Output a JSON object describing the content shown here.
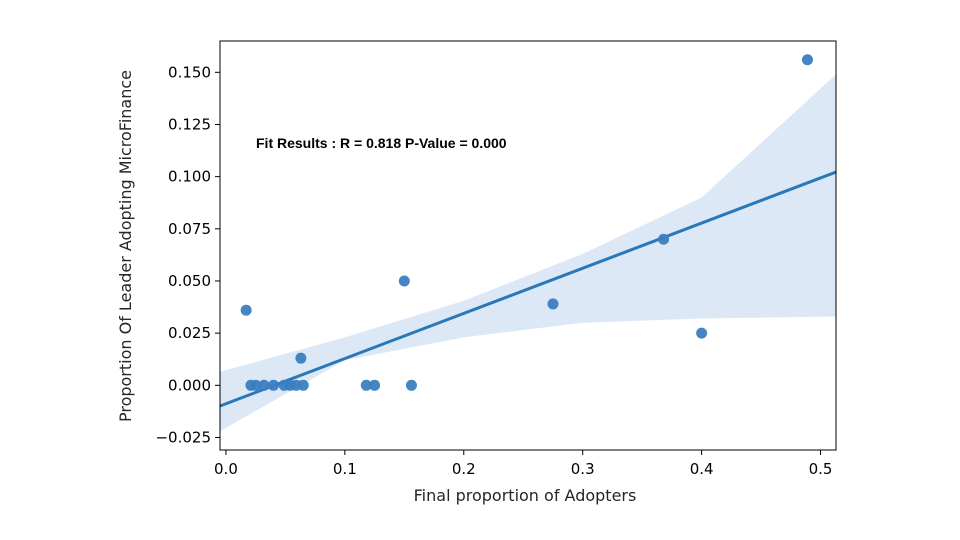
{
  "chart_data": {
    "type": "scatter",
    "xlabel": "Final proportion of Adopters",
    "ylabel": "Proportion Of Leader Adopting MicroFinance",
    "xlim": [
      -0.005,
      0.513
    ],
    "ylim": [
      -0.031,
      0.165
    ],
    "x_ticks": [
      0.0,
      0.1,
      0.2,
      0.3,
      0.4,
      0.5
    ],
    "x_tick_labels": [
      "0.0",
      "0.1",
      "0.2",
      "0.3",
      "0.4",
      "0.5"
    ],
    "y_ticks": [
      -0.025,
      0.0,
      0.025,
      0.05,
      0.075,
      0.1,
      0.125,
      0.15
    ],
    "y_tick_labels": [
      "−0.025",
      "0.000",
      "0.025",
      "0.050",
      "0.075",
      "0.100",
      "0.125",
      "0.150"
    ],
    "grid": false,
    "annotation": "Fit Results : R = 0.818  P-Value = 0.000",
    "colors": {
      "points": "#3a7fc1",
      "fit_line": "#2a78b8",
      "ci_band": "#c9dcef"
    },
    "series": [
      {
        "points": [
          [
            0.017,
            0.036
          ],
          [
            0.021,
            0.0
          ],
          [
            0.025,
            0.0
          ],
          [
            0.032,
            0.0
          ],
          [
            0.04,
            0.0
          ],
          [
            0.049,
            0.0
          ],
          [
            0.054,
            0.0
          ],
          [
            0.059,
            0.0
          ],
          [
            0.063,
            0.013
          ],
          [
            0.065,
            0.0
          ],
          [
            0.118,
            0.0
          ],
          [
            0.125,
            0.0
          ],
          [
            0.15,
            0.05
          ],
          [
            0.156,
            0.0
          ],
          [
            0.275,
            0.039
          ],
          [
            0.368,
            0.07
          ],
          [
            0.4,
            0.025
          ],
          [
            0.489,
            0.156
          ]
        ]
      }
    ],
    "fit_line": {
      "x": [
        -0.005,
        0.513
      ],
      "y": [
        -0.0099,
        0.1022
      ]
    },
    "confidence_band": {
      "x": [
        -0.005,
        0.1,
        0.2,
        0.3,
        0.4,
        0.513
      ],
      "upper": [
        0.0065,
        0.023,
        0.0405,
        0.063,
        0.09,
        0.149
      ],
      "lower": [
        -0.022,
        0.012,
        0.023,
        0.03,
        0.032,
        0.033
      ]
    }
  }
}
